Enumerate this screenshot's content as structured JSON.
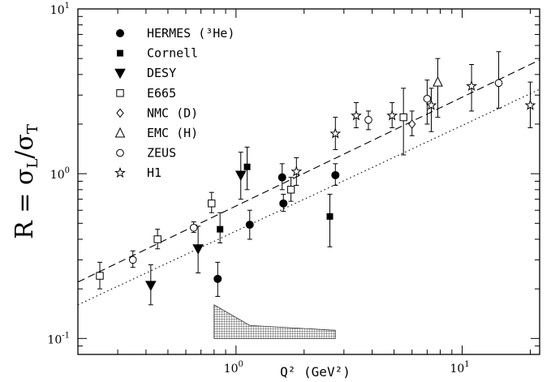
{
  "chart_data": {
    "type": "scatter",
    "xlabel": "Q² (GeV²)",
    "ylabel_main": "R = σ",
    "ylabel_sub1": "L",
    "ylabel_slash": "/σ",
    "ylabel_sub2": "T",
    "x_scale": "log",
    "y_scale": "log",
    "xlim": [
      0.2,
      22
    ],
    "ylim": [
      0.08,
      10
    ],
    "x_ticks": [
      {
        "value": 1,
        "base": "10",
        "exp": "0"
      },
      {
        "value": 10,
        "base": "10",
        "exp": "1"
      }
    ],
    "y_ticks": [
      {
        "value": 0.1,
        "base": "10",
        "exp": "-1"
      },
      {
        "value": 1,
        "base": "10",
        "exp": "0"
      },
      {
        "value": 10,
        "base": "10",
        "exp": "1"
      }
    ],
    "legend_position": "top-left",
    "series": [
      {
        "name": "HERMES (³He)",
        "marker": "filled-circle",
        "points": [
          [
            0.83,
            0.23,
            0.18,
            0.29
          ],
          [
            1.15,
            0.49,
            0.4,
            0.6
          ],
          [
            1.62,
            0.66,
            0.59,
            0.75
          ],
          [
            2.75,
            0.98,
            0.85,
            1.15
          ],
          [
            1.6,
            0.95,
            0.8,
            1.15
          ]
        ]
      },
      {
        "name": "Cornell",
        "marker": "filled-square",
        "points": [
          [
            0.85,
            0.46,
            0.38,
            0.58
          ],
          [
            1.12,
            1.1,
            0.8,
            1.45
          ],
          [
            2.6,
            0.55,
            0.36,
            0.75
          ]
        ]
      },
      {
        "name": "DESY",
        "marker": "filled-triangle-down",
        "points": [
          [
            0.42,
            0.21,
            0.16,
            0.28
          ],
          [
            0.68,
            0.35,
            0.25,
            0.48
          ],
          [
            1.05,
            0.98,
            0.7,
            1.35
          ]
        ]
      },
      {
        "name": "E665",
        "marker": "open-square",
        "points": [
          [
            0.25,
            0.24,
            0.2,
            0.29
          ],
          [
            0.45,
            0.4,
            0.35,
            0.46
          ],
          [
            0.78,
            0.66,
            0.58,
            0.77
          ],
          [
            1.75,
            0.8,
            0.68,
            0.95
          ],
          [
            5.5,
            2.2,
            1.3,
            3.3
          ]
        ]
      },
      {
        "name": "NMC (D)",
        "marker": "open-diamond",
        "points": [
          [
            6.0,
            2.0,
            1.7,
            2.4
          ]
        ]
      },
      {
        "name": "EMC (H)",
        "marker": "open-triangle-up",
        "points": [
          [
            7.8,
            3.6,
            2.2,
            5.0
          ]
        ]
      },
      {
        "name": "ZEUS",
        "marker": "open-circle",
        "points": [
          [
            0.35,
            0.3,
            0.27,
            0.34
          ],
          [
            0.65,
            0.47,
            0.44,
            0.51
          ],
          [
            3.85,
            2.12,
            1.85,
            2.4
          ],
          [
            7.0,
            2.85,
            2.0,
            3.7
          ],
          [
            14.5,
            3.55,
            2.5,
            5.5
          ]
        ]
      },
      {
        "name": "H1",
        "marker": "open-star",
        "points": [
          [
            1.85,
            1.03,
            0.85,
            1.25
          ],
          [
            2.75,
            1.75,
            1.4,
            2.2
          ],
          [
            3.4,
            2.25,
            1.9,
            2.7
          ],
          [
            4.9,
            2.25,
            1.9,
            2.7
          ],
          [
            7.3,
            2.6,
            1.8,
            3.3
          ],
          [
            11.0,
            3.4,
            2.4,
            4.6
          ],
          [
            20.0,
            2.6,
            1.9,
            3.6
          ]
        ]
      }
    ],
    "lines": [
      {
        "style": "dashed",
        "x": [
          0.2,
          22
        ],
        "y": [
          0.22,
          4.9
        ]
      },
      {
        "style": "dotted",
        "x": [
          0.2,
          22
        ],
        "y": [
          0.16,
          3.25
        ]
      }
    ],
    "band": {
      "fill": "hatched",
      "x": [
        0.8,
        1.15,
        2.75
      ],
      "upper": [
        0.16,
        0.12,
        0.112
      ],
      "lower": [
        0.1,
        0.1,
        0.1
      ]
    }
  }
}
